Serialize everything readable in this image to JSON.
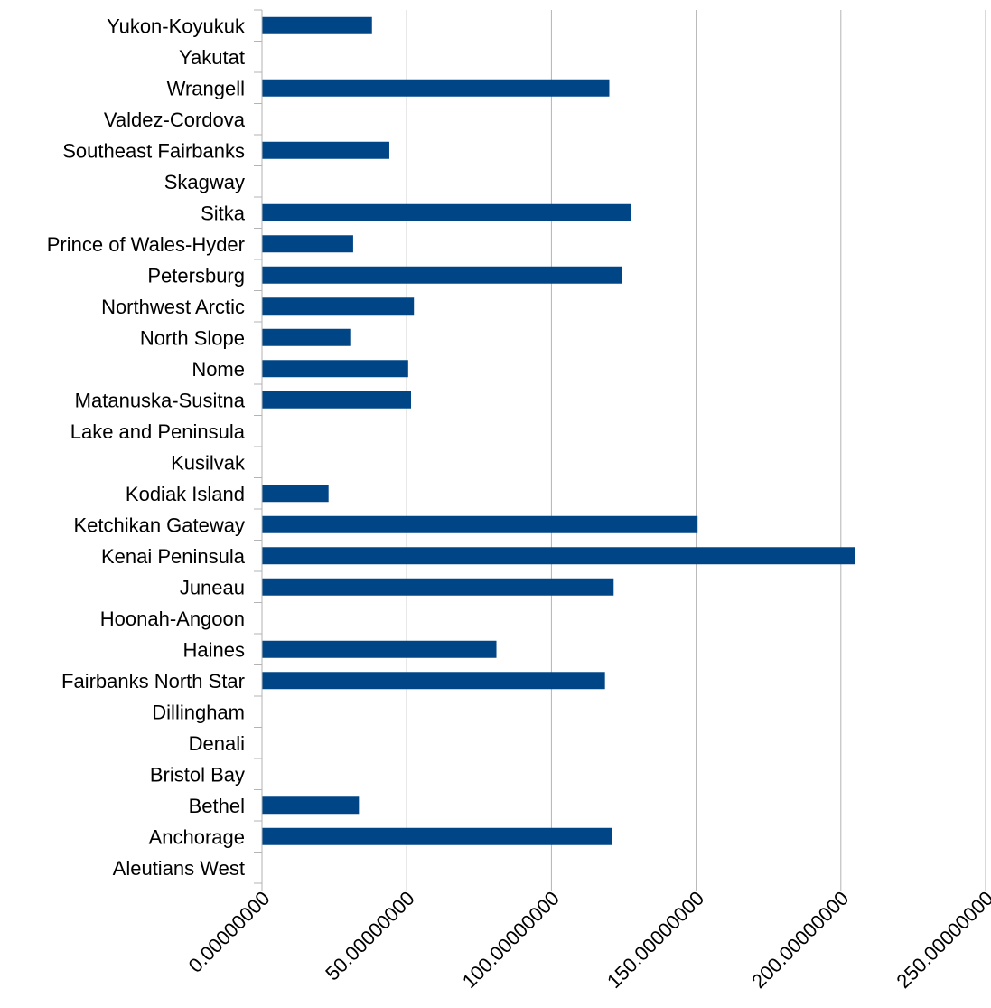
{
  "chart_data": {
    "type": "bar",
    "orientation": "horizontal",
    "title": "",
    "xlabel": "",
    "ylabel": "",
    "categories": [
      "Aleutians West",
      "Anchorage",
      "Bethel",
      "Bristol Bay",
      "Denali",
      "Dillingham",
      "Fairbanks North Star",
      "Haines",
      "Hoonah-Angoon",
      "Juneau",
      "Kenai Peninsula",
      "Ketchikan Gateway",
      "Kodiak Island",
      "Kusilvak",
      "Lake and Peninsula",
      "Matanuska-Susitna",
      "Nome",
      "North Slope",
      "Northwest Arctic",
      "Petersburg",
      "Prince of Wales-Hyder",
      "Sitka",
      "Skagway",
      "Southeast Fairbanks",
      "Valdez-Cordova",
      "Wrangell",
      "Yakutat",
      "Yukon-Koyukuk"
    ],
    "values": [
      0,
      121,
      33.5,
      0,
      0,
      0,
      118.5,
      81,
      0,
      121.5,
      205,
      150.5,
      23,
      0,
      0,
      51.5,
      50.5,
      30.5,
      52.5,
      124.5,
      31.5,
      127.5,
      0,
      44,
      0,
      120,
      0,
      38
    ],
    "xlim": [
      0,
      250
    ],
    "xticks": [
      0,
      50,
      100,
      150,
      200,
      250
    ],
    "xtick_labels": [
      "0.00000000",
      "50.00000000",
      "100.00000000",
      "150.00000000",
      "200.00000000",
      "250.00000000"
    ],
    "bar_color": "#004586",
    "grid": true,
    "legend": "none"
  }
}
